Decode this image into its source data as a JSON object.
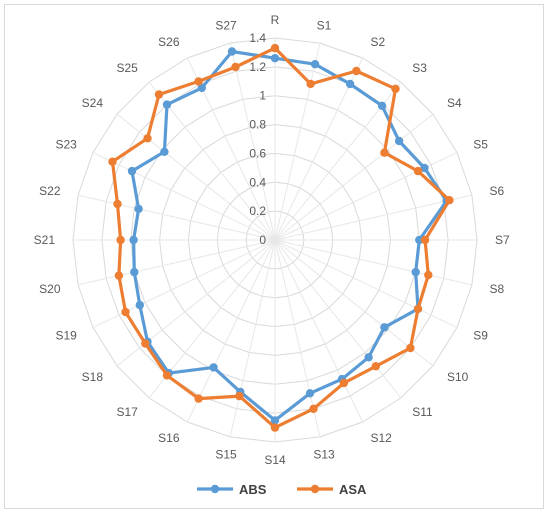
{
  "chart_data": {
    "type": "radar",
    "categories": [
      "R",
      "S1",
      "S2",
      "S3",
      "S4",
      "S5",
      "S6",
      "S7",
      "S8",
      "S9",
      "S10",
      "S11",
      "S12",
      "S13",
      "S14",
      "S15",
      "S16",
      "S17",
      "S18",
      "S19",
      "S20",
      "S21",
      "S22",
      "S23",
      "S24",
      "S25",
      "S26",
      "S27"
    ],
    "rlim": [
      0,
      1.4
    ],
    "ticks": [
      "0",
      "0.2",
      "0.4",
      "0.6",
      "0.8",
      "1",
      "1.2",
      "1.4"
    ],
    "grid": true,
    "legend_position": "bottom",
    "series": [
      {
        "name": "ABS",
        "color": "#5b9bd5",
        "values": [
          1.26,
          1.25,
          1.2,
          1.19,
          1.1,
          1.15,
          1.22,
          1.0,
          1.0,
          1.1,
          0.97,
          1.04,
          1.07,
          1.09,
          1.25,
          1.08,
          0.98,
          1.18,
          1.13,
          1.04,
          1.0,
          0.98,
          0.97,
          1.1,
          0.98,
          1.2,
          1.17,
          1.34
        ]
      },
      {
        "name": "ASA",
        "color": "#ed7d31",
        "values": [
          1.33,
          1.11,
          1.3,
          1.34,
          0.97,
          1.1,
          1.24,
          1.04,
          1.09,
          1.1,
          1.2,
          1.12,
          1.1,
          1.2,
          1.3,
          1.11,
          1.22,
          1.2,
          1.15,
          1.15,
          1.11,
          1.07,
          1.12,
          1.25,
          1.13,
          1.29,
          1.22,
          1.23
        ]
      }
    ]
  }
}
